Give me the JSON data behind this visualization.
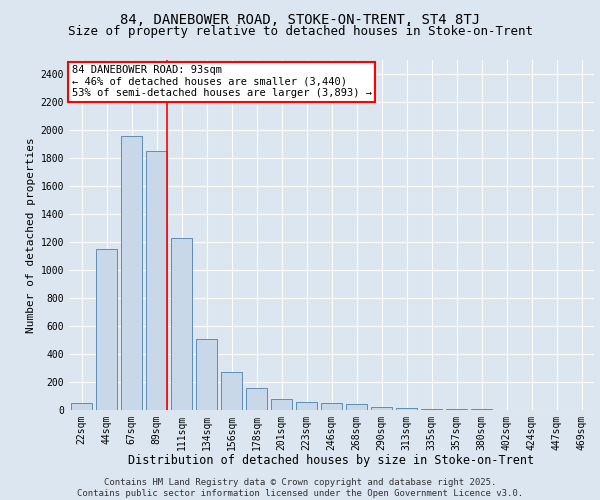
{
  "title": "84, DANEBOWER ROAD, STOKE-ON-TRENT, ST4 8TJ",
  "subtitle": "Size of property relative to detached houses in Stoke-on-Trent",
  "xlabel": "Distribution of detached houses by size in Stoke-on-Trent",
  "ylabel": "Number of detached properties",
  "categories": [
    "22sqm",
    "44sqm",
    "67sqm",
    "89sqm",
    "111sqm",
    "134sqm",
    "156sqm",
    "178sqm",
    "201sqm",
    "223sqm",
    "246sqm",
    "268sqm",
    "290sqm",
    "313sqm",
    "335sqm",
    "357sqm",
    "380sqm",
    "402sqm",
    "424sqm",
    "447sqm",
    "469sqm"
  ],
  "values": [
    50,
    1150,
    1960,
    1850,
    1230,
    510,
    270,
    160,
    80,
    55,
    50,
    40,
    25,
    15,
    10,
    5,
    5,
    2,
    2,
    1,
    1
  ],
  "bar_color": "#c8d8e8",
  "bar_edge_color": "#5b8db8",
  "red_line_index": 3,
  "annotation_text": "84 DANEBOWER ROAD: 93sqm\n← 46% of detached houses are smaller (3,440)\n53% of semi-detached houses are larger (3,893) →",
  "annotation_box_color": "white",
  "annotation_box_edge": "red",
  "ylim": [
    0,
    2500
  ],
  "yticks": [
    0,
    200,
    400,
    600,
    800,
    1000,
    1200,
    1400,
    1600,
    1800,
    2000,
    2200,
    2400
  ],
  "bg_color": "#dce6f0",
  "grid_color": "white",
  "footer_text": "Contains HM Land Registry data © Crown copyright and database right 2025.\nContains public sector information licensed under the Open Government Licence v3.0.",
  "title_fontsize": 10,
  "subtitle_fontsize": 9,
  "tick_fontsize": 7,
  "xlabel_fontsize": 8.5,
  "ylabel_fontsize": 8,
  "footer_fontsize": 6.5,
  "annot_fontsize": 7.5
}
